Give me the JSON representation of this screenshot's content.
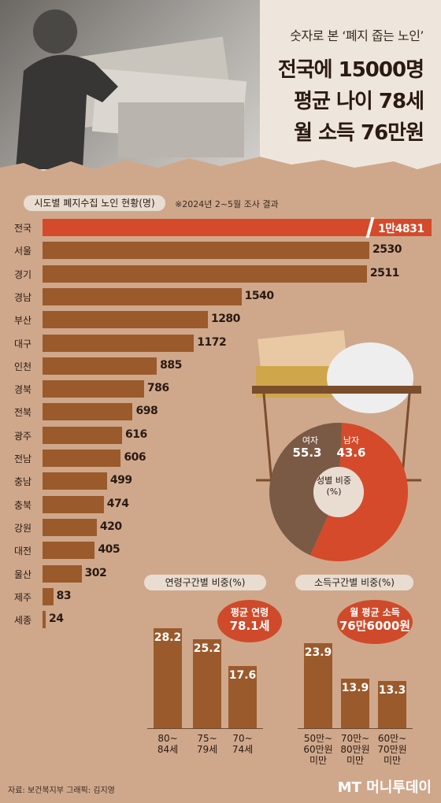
{
  "header": {
    "subtitle": "숫자로 본 ‘폐지 줍는 노인’",
    "line1": "전국에 15000명",
    "line2": "평균 나이 78세",
    "line3": "월 소득 76만원"
  },
  "regional": {
    "title": "시도별 폐지수집 노인 현황(명)",
    "note": "※2024년 2~5월 조사 결과"
  },
  "gender": {
    "title": "성별 비중(%)",
    "female_label": "여자",
    "male_label": "남자"
  },
  "age": {
    "title": "연령구간별 비중(%)",
    "bubble_line1": "평균 연령",
    "bubble_line2": "78.1세"
  },
  "income": {
    "title": "소득구간별 비중(%)",
    "bubble_line1": "월 평균 소득",
    "bubble_line2": "76만6000원"
  },
  "footer": {
    "source": "자료: 보건복지부 그래픽: 김지영",
    "logo": "MT 머니투데이"
  },
  "colors": {
    "bar": "#9b5a2c",
    "highlight": "#d44a2a",
    "male": "#7a5a45",
    "background": "#cfa88c"
  },
  "chart_data": [
    {
      "type": "bar",
      "orientation": "horizontal",
      "title": "시도별 폐지수집 노인 현황(명)",
      "categories": [
        "전국",
        "서울",
        "경기",
        "경남",
        "부산",
        "대구",
        "인천",
        "경북",
        "전북",
        "광주",
        "전남",
        "충남",
        "충북",
        "강원",
        "대전",
        "울산",
        "제주",
        "세종"
      ],
      "values": [
        14831,
        2530,
        2511,
        1540,
        1280,
        1172,
        885,
        786,
        698,
        616,
        606,
        499,
        474,
        420,
        405,
        302,
        83,
        24
      ],
      "labels": [
        "1만4831",
        "2530",
        "2511",
        "1540",
        "1280",
        "1172",
        "885",
        "786",
        "698",
        "616",
        "606",
        "499",
        "474",
        "420",
        "405",
        "302",
        "83",
        "24"
      ],
      "axis_break": true
    },
    {
      "type": "pie",
      "title": "성별 비중(%)",
      "categories": [
        "여자",
        "남자"
      ],
      "values": [
        55.3,
        43.6
      ]
    },
    {
      "type": "bar",
      "title": "연령구간별 비중(%)",
      "categories": [
        "80~ 84세",
        "75~ 79세",
        "70~ 74세"
      ],
      "values": [
        28.2,
        25.2,
        17.6
      ]
    },
    {
      "type": "bar",
      "title": "소득구간별 비중(%)",
      "categories": [
        "50만~ 60만원 미만",
        "70만~ 80만원 미만",
        "60만~ 70만원 미만"
      ],
      "values": [
        23.9,
        13.9,
        13.3
      ]
    }
  ]
}
